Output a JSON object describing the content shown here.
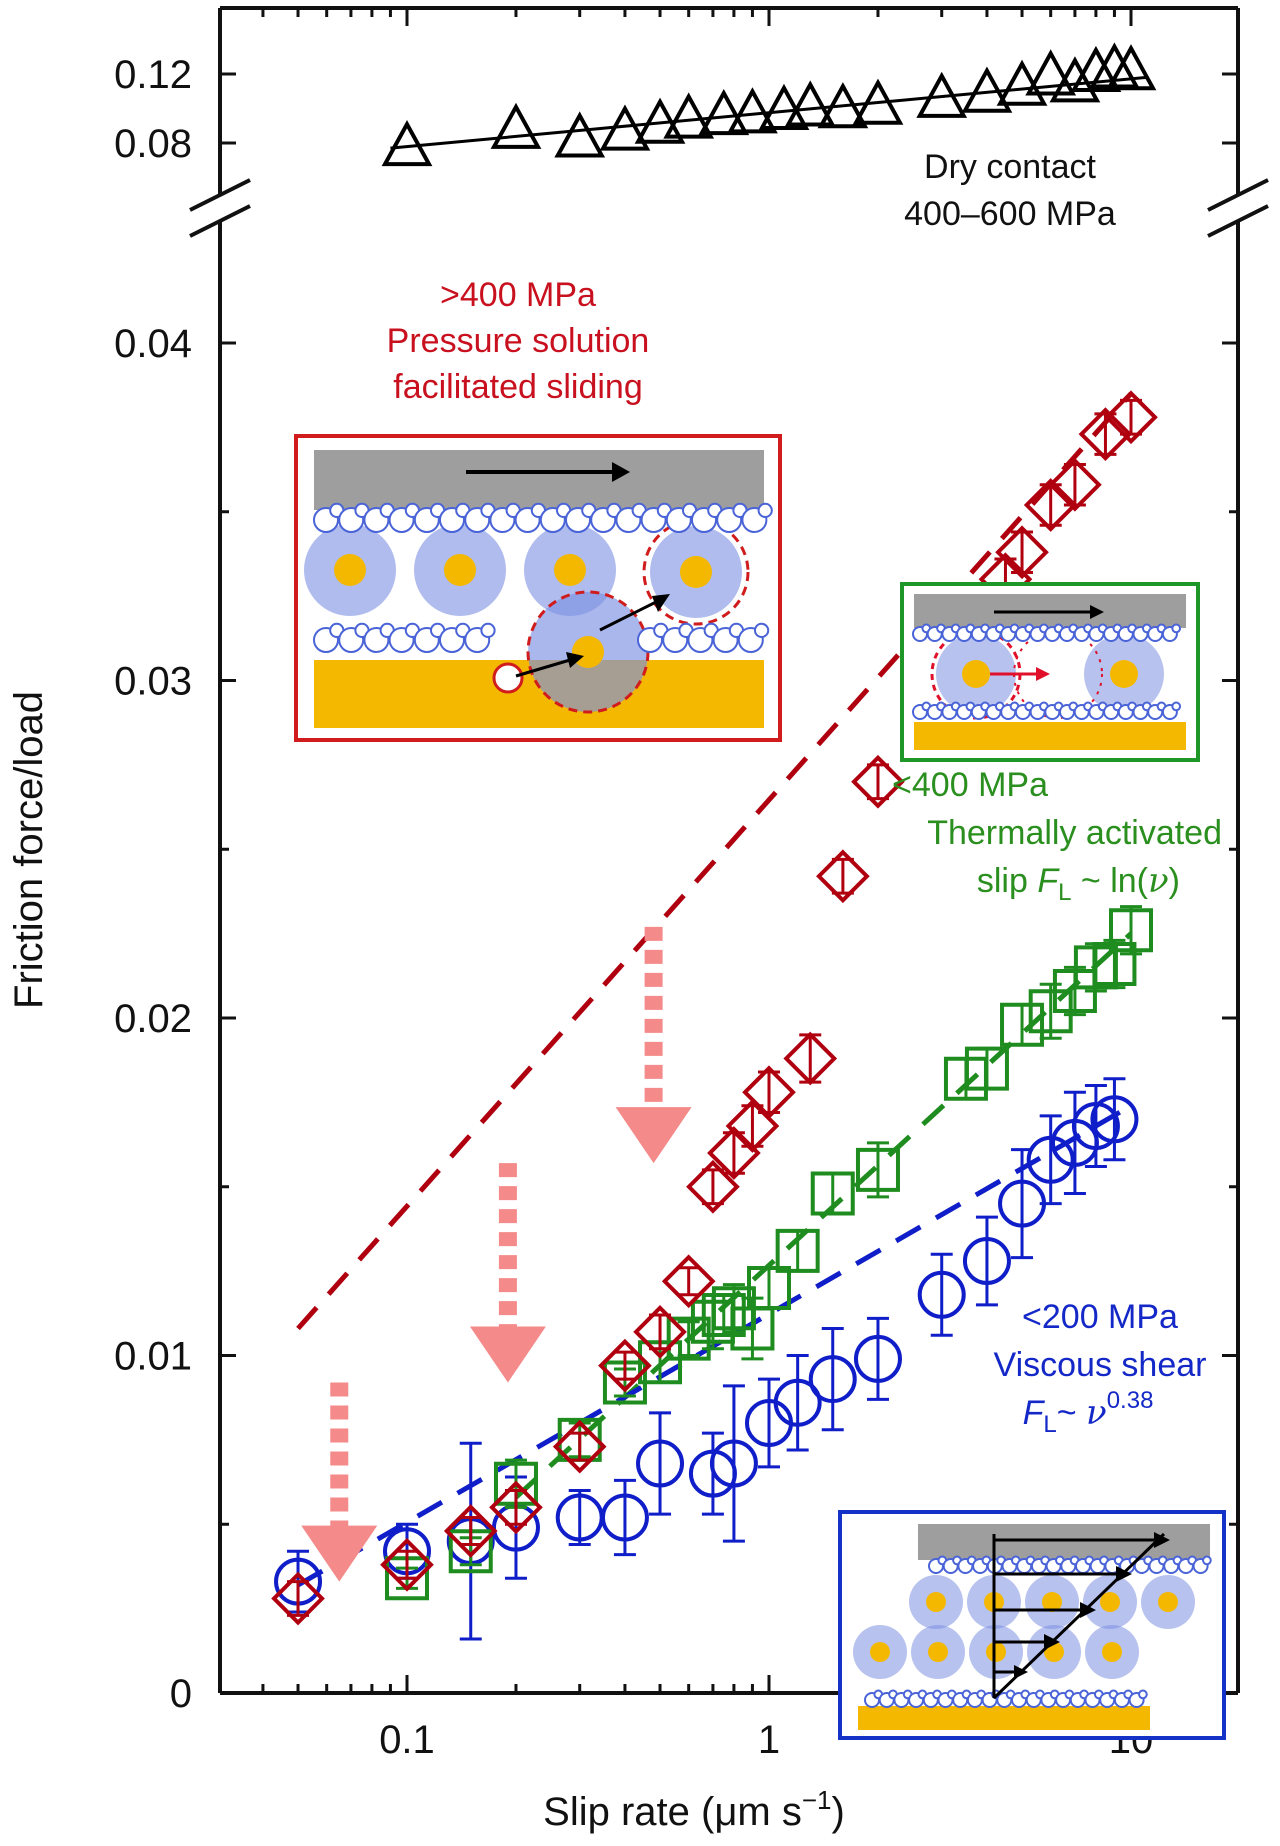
{
  "chart_data": {
    "type": "scatter",
    "title": "",
    "xlabel": "Slip rate (μm s",
    "xlabel_sup": "−1",
    "xlabel_close": ")",
    "ylabel": "Friction force/load",
    "x_scale": "log",
    "xlim": [
      0.03,
      25
    ],
    "ylim_lower": [
      0,
      0.042
    ],
    "ylim_upper_break": [
      0.06,
      0.13
    ],
    "x_ticks": [
      {
        "value": 0.1,
        "label": "0.1"
      },
      {
        "value": 1,
        "label": "1"
      },
      {
        "value": 10,
        "label": "10"
      }
    ],
    "y_ticks_lower": [
      {
        "value": 0,
        "label": "0"
      },
      {
        "value": 0.01,
        "label": "0.01"
      },
      {
        "value": 0.02,
        "label": "0.02"
      },
      {
        "value": 0.03,
        "label": "0.03"
      },
      {
        "value": 0.04,
        "label": "0.04"
      }
    ],
    "y_ticks_upper": [
      {
        "value": 0.08,
        "label": "0.08"
      },
      {
        "value": 0.12,
        "label": "0.12"
      }
    ],
    "grid": false,
    "series": [
      {
        "key": "dry",
        "marker": "triangle",
        "color": "#000000",
        "fit": "solid",
        "x": [
          0.1,
          0.2,
          0.3,
          0.4,
          0.5,
          0.6,
          0.75,
          0.9,
          1.1,
          1.3,
          1.6,
          2.0,
          3.0,
          4.0,
          5.0,
          6.0,
          7.0,
          8.0,
          9.0,
          10.0
        ],
        "y": [
          0.077,
          0.087,
          0.082,
          0.086,
          0.09,
          0.093,
          0.095,
          0.096,
          0.098,
          0.1,
          0.099,
          0.101,
          0.105,
          0.108,
          0.112,
          0.118,
          0.114,
          0.12,
          0.122,
          0.121
        ],
        "fit_points": [
          [
            0.09,
            0.077
          ],
          [
            11,
            0.118
          ]
        ]
      },
      {
        "key": "pressure-solution",
        "marker": "diamond",
        "color": "#b0000f",
        "fit": "dashed",
        "x": [
          0.05,
          0.1,
          0.15,
          0.2,
          0.3,
          0.4,
          0.5,
          0.6,
          0.7,
          0.8,
          0.9,
          1.0,
          1.3,
          1.6,
          2.0,
          4.5,
          5.0,
          6.0,
          7.0,
          8.5,
          10.0
        ],
        "y": [
          0.0028,
          0.0038,
          0.0048,
          0.0055,
          0.0073,
          0.0097,
          0.0107,
          0.0122,
          0.015,
          0.016,
          0.0168,
          0.0178,
          0.0188,
          0.0242,
          0.027,
          0.033,
          0.0338,
          0.0352,
          0.0358,
          0.0373,
          0.0378
        ],
        "err": [
          0.0005,
          0.0004,
          0.0004,
          0.0005,
          0.0004,
          0.0004,
          0.0005,
          0.0004,
          0.0005,
          0.0006,
          0.0006,
          0.0006,
          0.0007,
          0.0005,
          0.0005,
          0.0006,
          0.0006,
          0.0006,
          0.0006,
          0.0006,
          0.0005
        ],
        "fit_points": [
          [
            0.05,
            0.0108
          ],
          [
            10.0,
            0.0385
          ]
        ]
      },
      {
        "key": "thermally-activated",
        "marker": "square",
        "color": "#1e8c1e",
        "fit": "dashed",
        "x": [
          0.1,
          0.15,
          0.2,
          0.3,
          0.4,
          0.5,
          0.6,
          0.7,
          0.75,
          0.8,
          0.9,
          1.0,
          1.2,
          1.5,
          2.0,
          3.5,
          4.0,
          5.0,
          6.0,
          7.0,
          8.0,
          9.0,
          10.0
        ],
        "y": [
          0.0034,
          0.0042,
          0.0062,
          0.0075,
          0.0092,
          0.0098,
          0.0105,
          0.011,
          0.0112,
          0.0114,
          0.0108,
          0.012,
          0.0131,
          0.0148,
          0.0155,
          0.0182,
          0.0185,
          0.0198,
          0.0202,
          0.0208,
          0.0215,
          0.0216,
          0.0226
        ],
        "err": [
          0.0003,
          0.0004,
          0.0007,
          0.0005,
          0.0004,
          0.0006,
          0.0005,
          0.0008,
          0.0006,
          0.0007,
          0.0009,
          0.0006,
          0.0006,
          0.0006,
          0.0008,
          0.0006,
          0.0006,
          0.0006,
          0.0008,
          0.0007,
          0.0007,
          0.0007,
          0.0007
        ],
        "fit_points": [
          [
            0.2,
            0.0058
          ],
          [
            10.0,
            0.0225
          ]
        ]
      },
      {
        "key": "viscous-shear",
        "marker": "circle",
        "color": "#0f1ec8",
        "fit": "dashed",
        "x": [
          0.05,
          0.1,
          0.15,
          0.2,
          0.3,
          0.4,
          0.5,
          0.7,
          0.8,
          1.0,
          1.2,
          1.5,
          2.0,
          3.0,
          4.0,
          5.0,
          6.0,
          7.0,
          8.0,
          9.0
        ],
        "y": [
          0.0033,
          0.0042,
          0.0045,
          0.0049,
          0.0052,
          0.0052,
          0.0068,
          0.0065,
          0.0068,
          0.008,
          0.0086,
          0.0093,
          0.0099,
          0.0118,
          0.0128,
          0.0145,
          0.0158,
          0.0163,
          0.0168,
          0.017
        ],
        "err": [
          0.0009,
          0.0008,
          0.0029,
          0.0015,
          0.0008,
          0.0011,
          0.0015,
          0.0012,
          0.0023,
          0.0013,
          0.0014,
          0.0015,
          0.0012,
          0.0012,
          0.0013,
          0.0016,
          0.0013,
          0.0015,
          0.0012,
          0.0012
        ],
        "fit_points": [
          [
            0.05,
            0.0032
          ],
          [
            10.0,
            0.0174
          ]
        ]
      }
    ],
    "annotations": {
      "dry": {
        "line1": "Dry contact",
        "line2": "400–600 MPa",
        "color": "#111111"
      },
      "pressure": {
        "line1": ">400 MPa",
        "line2": "Pressure solution",
        "line3": "facilitated sliding",
        "color": "#c8101e"
      },
      "thermal": {
        "line1": "<400 MPa",
        "line2": "Thermally activated",
        "line3_prefix": "slip ",
        "sym_F": "F",
        "sym_L": "L",
        "mid": " ~ ln(",
        "sym_v": "ν",
        "close": ")",
        "color": "#2a8f1e"
      },
      "viscous": {
        "line1": "<200 MPa",
        "line2": "Viscous shear",
        "sym_F": "F",
        "sym_L": "L",
        "mid": "~ ",
        "sym_v": "ν",
        "exponent": "0.38",
        "color": "#1428c8"
      }
    },
    "arrows": {
      "color": "#f48a8a",
      "x": [
        0.065,
        0.19,
        0.48
      ]
    },
    "insets": {
      "pressure_border": "#d01c1c",
      "thermal_border": "#1e9628",
      "viscous_border": "#1432c8",
      "gold": "#f5b800",
      "blue": "#6f86e0"
    }
  }
}
